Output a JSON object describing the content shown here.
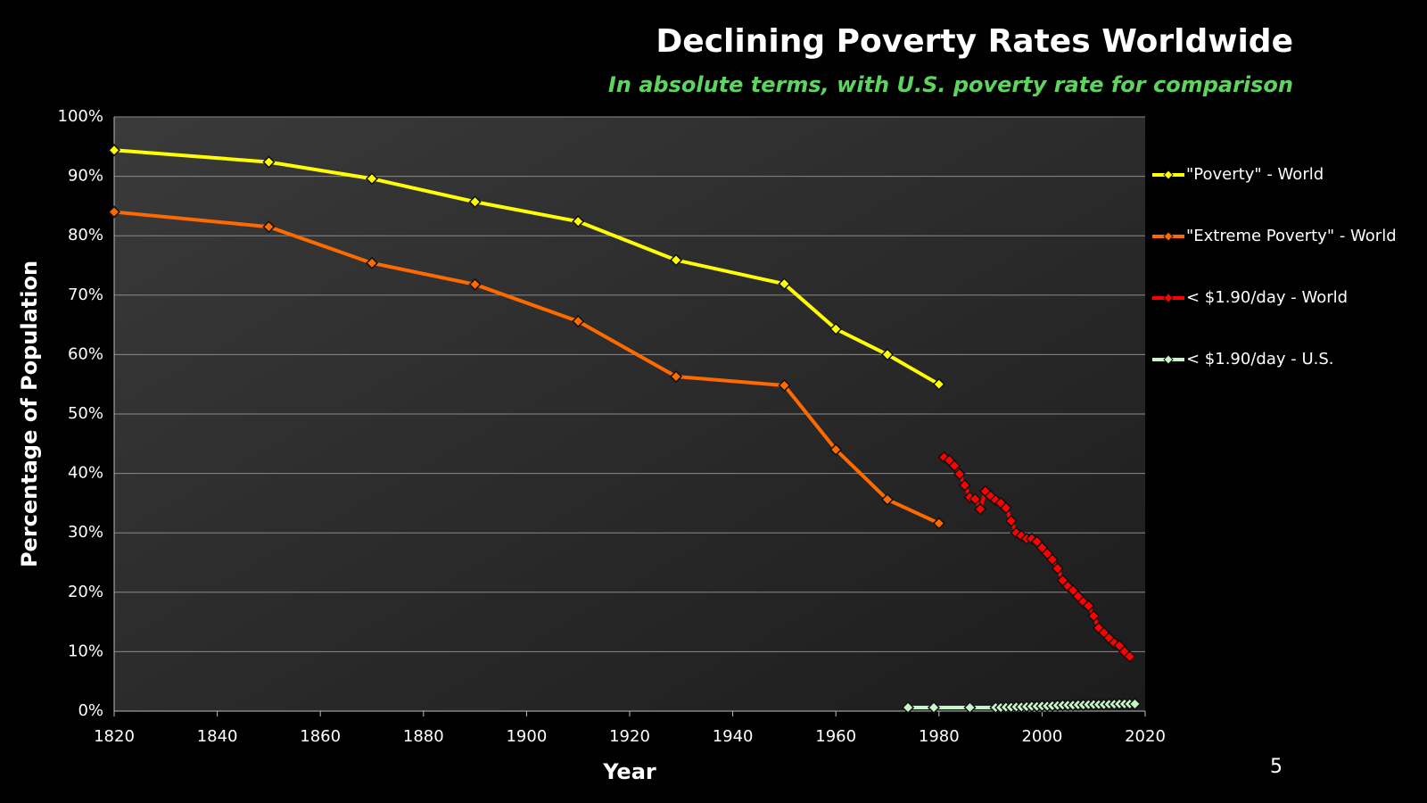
{
  "chart_data": {
    "type": "line",
    "title": "Declining Poverty Rates Worldwide",
    "subtitle": "In absolute terms, with U.S. poverty rate for comparison",
    "x_label": "Year",
    "y_label": "Percentage of Population",
    "page_number": "5",
    "legend": "right",
    "grid": true,
    "xlim": [
      1820,
      2020
    ],
    "xticks": [
      1820,
      1840,
      1860,
      1880,
      1900,
      1920,
      1940,
      1960,
      1980,
      2000,
      2020
    ],
    "ylim": [
      0,
      100
    ],
    "yticks": [
      {
        "value": 0,
        "label": "0%"
      },
      {
        "value": 10,
        "label": "10%"
      },
      {
        "value": 20,
        "label": "20%"
      },
      {
        "value": 30,
        "label": "30%"
      },
      {
        "value": 40,
        "label": "40%"
      },
      {
        "value": 50,
        "label": "50%"
      },
      {
        "value": 60,
        "label": "60%"
      },
      {
        "value": 70,
        "label": "70%"
      },
      {
        "value": 80,
        "label": "80%"
      },
      {
        "value": 90,
        "label": "90%"
      },
      {
        "value": 100,
        "label": "100%"
      }
    ],
    "series": [
      {
        "name": "\"Poverty\" - World",
        "color": "#ffff00",
        "x": [
          1820,
          1850,
          1870,
          1890,
          1910,
          1929,
          1950,
          1960,
          1970,
          1980
        ],
        "values": [
          94.4,
          92.4,
          89.6,
          85.7,
          82.4,
          75.9,
          71.9,
          64.3,
          60.0,
          55.0
        ]
      },
      {
        "name": "\"Extreme Poverty\" - World",
        "color": "#ff6a00",
        "x": [
          1820,
          1850,
          1870,
          1890,
          1910,
          1929,
          1950,
          1960,
          1970,
          1980
        ],
        "values": [
          84.0,
          81.5,
          75.4,
          71.8,
          65.6,
          56.3,
          54.8,
          44.0,
          35.6,
          31.6
        ]
      },
      {
        "name": "< $1.90/day - World",
        "color": "#ff0000",
        "x": [
          1981,
          1982,
          1983,
          1984,
          1985,
          1986,
          1987,
          1988,
          1989,
          1990,
          1991,
          1992,
          1993,
          1994,
          1995,
          1996,
          1997,
          1998,
          1999,
          2000,
          2001,
          2002,
          2003,
          2004,
          2005,
          2006,
          2007,
          2008,
          2009,
          2010,
          2011,
          2012,
          2013,
          2014,
          2015,
          2016,
          2017
        ],
        "values": [
          42.7,
          42.2,
          41.3,
          39.9,
          38.0,
          36.0,
          35.7,
          34.0,
          37.0,
          36.2,
          35.5,
          35.0,
          34.2,
          32.0,
          30.0,
          29.5,
          29.0,
          29.0,
          28.5,
          27.5,
          26.5,
          25.5,
          24.0,
          22.0,
          21.0,
          20.3,
          19.3,
          18.4,
          17.7,
          16.0,
          14.0,
          13.2,
          12.3,
          11.5,
          11.0,
          10.0,
          9.2
        ]
      },
      {
        "name": "< $1.90/day - U.S.",
        "color": "#c6f5c6",
        "x": [
          1974,
          1979,
          1986,
          1991,
          1992,
          1993,
          1994,
          1995,
          1996,
          1997,
          1998,
          1999,
          2000,
          2001,
          2002,
          2003,
          2004,
          2005,
          2006,
          2007,
          2008,
          2009,
          2010,
          2011,
          2012,
          2013,
          2014,
          2015,
          2016,
          2017,
          2018
        ],
        "values": [
          0.6,
          0.6,
          0.6,
          0.6,
          0.6,
          0.65,
          0.65,
          0.7,
          0.7,
          0.75,
          0.8,
          0.8,
          0.85,
          0.85,
          0.9,
          0.95,
          1.0,
          1.0,
          1.0,
          1.05,
          1.05,
          1.1,
          1.1,
          1.1,
          1.1,
          1.15,
          1.15,
          1.2,
          1.2,
          1.2,
          1.2
        ]
      }
    ]
  }
}
